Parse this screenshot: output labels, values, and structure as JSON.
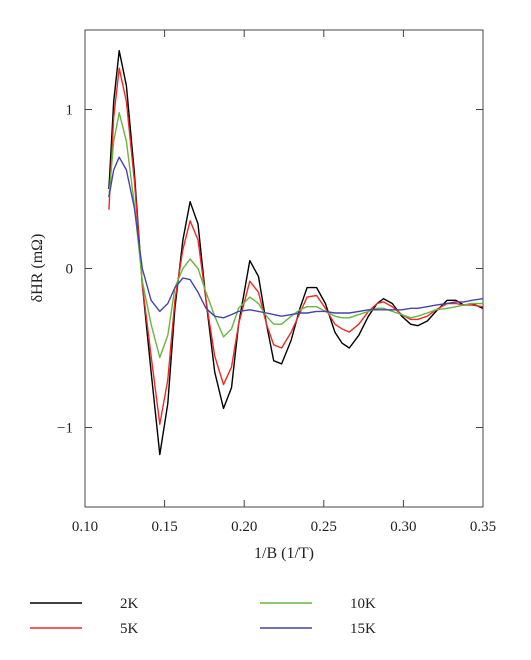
{
  "chart_data": {
    "type": "line",
    "title": "",
    "xlabel": "1/B (1/T)",
    "ylabel": "δHR (mΩ)",
    "xlim": [
      0.1,
      0.35
    ],
    "ylim": [
      -1.5,
      1.5
    ],
    "x_ticks": [
      0.1,
      0.15,
      0.2,
      0.25,
      0.3,
      0.35
    ],
    "x_tick_labels": [
      "0.10",
      "0.15",
      "0.20",
      "0.25",
      "0.30",
      "0.35"
    ],
    "y_ticks": [
      -1,
      0,
      1
    ],
    "y_tick_labels": [
      "−1",
      "0",
      "1"
    ],
    "grid": false,
    "legend_position": "below",
    "series": [
      {
        "name": "2K",
        "color": "#000000",
        "x": [
          0.115,
          0.118,
          0.1215,
          0.126,
          0.131,
          0.136,
          0.1415,
          0.147,
          0.152,
          0.1565,
          0.1615,
          0.166,
          0.171,
          0.176,
          0.1815,
          0.187,
          0.192,
          0.1965,
          0.2035,
          0.209,
          0.214,
          0.2185,
          0.2235,
          0.2295,
          0.235,
          0.2395,
          0.2455,
          0.251,
          0.257,
          0.2615,
          0.266,
          0.272,
          0.278,
          0.2835,
          0.2875,
          0.293,
          0.299,
          0.3045,
          0.309,
          0.315,
          0.3205,
          0.3275,
          0.333,
          0.338,
          0.343,
          0.35
        ],
        "values": [
          0.5,
          1.05,
          1.37,
          1.15,
          0.6,
          -0.1,
          -0.65,
          -1.17,
          -0.85,
          -0.25,
          0.18,
          0.42,
          0.28,
          -0.2,
          -0.65,
          -0.88,
          -0.75,
          -0.35,
          0.05,
          -0.05,
          -0.35,
          -0.58,
          -0.6,
          -0.45,
          -0.25,
          -0.12,
          -0.12,
          -0.22,
          -0.4,
          -0.47,
          -0.5,
          -0.42,
          -0.3,
          -0.22,
          -0.19,
          -0.22,
          -0.3,
          -0.35,
          -0.36,
          -0.33,
          -0.27,
          -0.2,
          -0.2,
          -0.23,
          -0.22,
          -0.25
        ]
      },
      {
        "name": "5K",
        "color": "#ee2a24",
        "x": [
          0.115,
          0.118,
          0.1215,
          0.126,
          0.131,
          0.136,
          0.1415,
          0.147,
          0.152,
          0.1565,
          0.1615,
          0.166,
          0.171,
          0.176,
          0.1815,
          0.187,
          0.192,
          0.1965,
          0.2035,
          0.209,
          0.214,
          0.2185,
          0.2235,
          0.2295,
          0.235,
          0.2395,
          0.2455,
          0.251,
          0.257,
          0.2615,
          0.266,
          0.272,
          0.278,
          0.2835,
          0.2875,
          0.293,
          0.299,
          0.3045,
          0.309,
          0.315,
          0.3205,
          0.3275,
          0.333,
          0.338,
          0.343,
          0.35
        ],
        "values": [
          0.37,
          0.95,
          1.26,
          1.05,
          0.55,
          -0.1,
          -0.55,
          -0.98,
          -0.7,
          -0.2,
          0.12,
          0.3,
          0.18,
          -0.2,
          -0.55,
          -0.73,
          -0.62,
          -0.35,
          -0.08,
          -0.15,
          -0.35,
          -0.48,
          -0.5,
          -0.4,
          -0.28,
          -0.18,
          -0.17,
          -0.25,
          -0.35,
          -0.38,
          -0.4,
          -0.35,
          -0.27,
          -0.22,
          -0.21,
          -0.24,
          -0.29,
          -0.32,
          -0.32,
          -0.3,
          -0.26,
          -0.22,
          -0.22,
          -0.23,
          -0.23,
          -0.24
        ]
      },
      {
        "name": "10K",
        "color": "#67b63f",
        "x": [
          0.115,
          0.118,
          0.1215,
          0.126,
          0.131,
          0.136,
          0.1415,
          0.147,
          0.152,
          0.1565,
          0.1615,
          0.166,
          0.171,
          0.176,
          0.1815,
          0.187,
          0.192,
          0.1965,
          0.2035,
          0.209,
          0.214,
          0.2185,
          0.2235,
          0.2295,
          0.235,
          0.2395,
          0.2455,
          0.251,
          0.257,
          0.2615,
          0.266,
          0.272,
          0.278,
          0.2835,
          0.2875,
          0.293,
          0.299,
          0.3045,
          0.309,
          0.315,
          0.3205,
          0.3275,
          0.333,
          0.338,
          0.343,
          0.35
        ],
        "values": [
          0.45,
          0.8,
          0.98,
          0.8,
          0.4,
          -0.08,
          -0.35,
          -0.56,
          -0.42,
          -0.12,
          0.0,
          0.06,
          0.0,
          -0.15,
          -0.3,
          -0.43,
          -0.38,
          -0.25,
          -0.18,
          -0.22,
          -0.3,
          -0.35,
          -0.35,
          -0.3,
          -0.26,
          -0.24,
          -0.24,
          -0.27,
          -0.3,
          -0.31,
          -0.31,
          -0.29,
          -0.27,
          -0.25,
          -0.25,
          -0.27,
          -0.29,
          -0.31,
          -0.3,
          -0.28,
          -0.26,
          -0.25,
          -0.24,
          -0.23,
          -0.22,
          -0.22
        ]
      },
      {
        "name": "15K",
        "color": "#4444aa",
        "x": [
          0.115,
          0.118,
          0.1215,
          0.126,
          0.131,
          0.136,
          0.1415,
          0.147,
          0.152,
          0.1565,
          0.1615,
          0.166,
          0.171,
          0.176,
          0.1815,
          0.187,
          0.192,
          0.1965,
          0.2035,
          0.209,
          0.214,
          0.2185,
          0.2235,
          0.2295,
          0.235,
          0.2395,
          0.2455,
          0.251,
          0.257,
          0.2615,
          0.266,
          0.272,
          0.278,
          0.2835,
          0.2875,
          0.293,
          0.299,
          0.3045,
          0.309,
          0.315,
          0.3205,
          0.3275,
          0.333,
          0.338,
          0.343,
          0.35
        ],
        "values": [
          0.45,
          0.62,
          0.7,
          0.62,
          0.38,
          0.0,
          -0.2,
          -0.27,
          -0.22,
          -0.12,
          -0.06,
          -0.07,
          -0.15,
          -0.25,
          -0.3,
          -0.31,
          -0.29,
          -0.27,
          -0.26,
          -0.27,
          -0.28,
          -0.29,
          -0.3,
          -0.29,
          -0.28,
          -0.28,
          -0.27,
          -0.27,
          -0.28,
          -0.28,
          -0.28,
          -0.27,
          -0.26,
          -0.26,
          -0.26,
          -0.26,
          -0.26,
          -0.25,
          -0.25,
          -0.24,
          -0.23,
          -0.22,
          -0.21,
          -0.21,
          -0.2,
          -0.19
        ]
      }
    ]
  }
}
